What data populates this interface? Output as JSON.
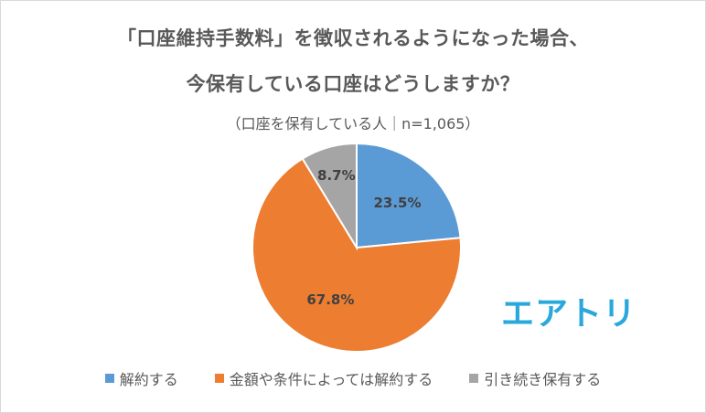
{
  "chart_data": {
    "type": "pie",
    "title_line1": "「口座維持手数料」を徴収されるようになった場合、",
    "title_line2": "今保有している口座はどうしますか？",
    "subtitle": "（口座を保有している人｜n=1,065）",
    "categories": [
      "解約する",
      "金額や条件によっては解約する",
      "引き続き保有する"
    ],
    "values": [
      23.5,
      67.8,
      8.7
    ],
    "value_labels": [
      "23.5%",
      "67.8%",
      "8.7%"
    ],
    "colors": [
      "#5b9bd5",
      "#ed7d31",
      "#a5a5a5"
    ],
    "legend_position": "bottom",
    "start_angle": "12 o'clock, clockwise"
  },
  "logo": {
    "text": "エアトリ",
    "color": "#2aa8dc"
  }
}
